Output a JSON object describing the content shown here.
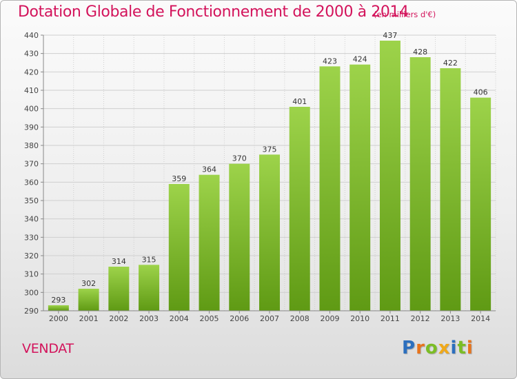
{
  "header": {
    "title": "Dotation Globale de Fonctionnement de 2000 à 2014",
    "unit": "(en milliers d'€)"
  },
  "footer": {
    "commune": "VENDAT",
    "logo": "Proxiti"
  },
  "colors": {
    "title": "#d3135b",
    "bar_light": "#9dd34a",
    "bar_dark": "#5f9a14",
    "grid": "#cfcfcf",
    "logo_letters": [
      "#2c6fbe",
      "#e8741c",
      "#7bbd25",
      "#f0a91a",
      "#2c6fbe",
      "#7bbd25",
      "#e8741c"
    ]
  },
  "chart_data": {
    "type": "bar",
    "title": "Dotation Globale de Fonctionnement de 2000 à 2014",
    "subtitle": "(en milliers d'€)",
    "xlabel": "",
    "ylabel": "",
    "categories": [
      "2000",
      "2001",
      "2002",
      "2003",
      "2004",
      "2005",
      "2006",
      "2007",
      "2008",
      "2009",
      "2010",
      "2011",
      "2012",
      "2013",
      "2014"
    ],
    "values": [
      293,
      302,
      314,
      315,
      359,
      364,
      370,
      375,
      401,
      423,
      424,
      437,
      428,
      422,
      406
    ],
    "ylim": [
      290,
      440
    ],
    "yticks": [
      290,
      300,
      310,
      320,
      330,
      340,
      350,
      360,
      370,
      380,
      390,
      400,
      410,
      420,
      430,
      440
    ],
    "grid": true,
    "legend": "none",
    "data_labels": true
  }
}
